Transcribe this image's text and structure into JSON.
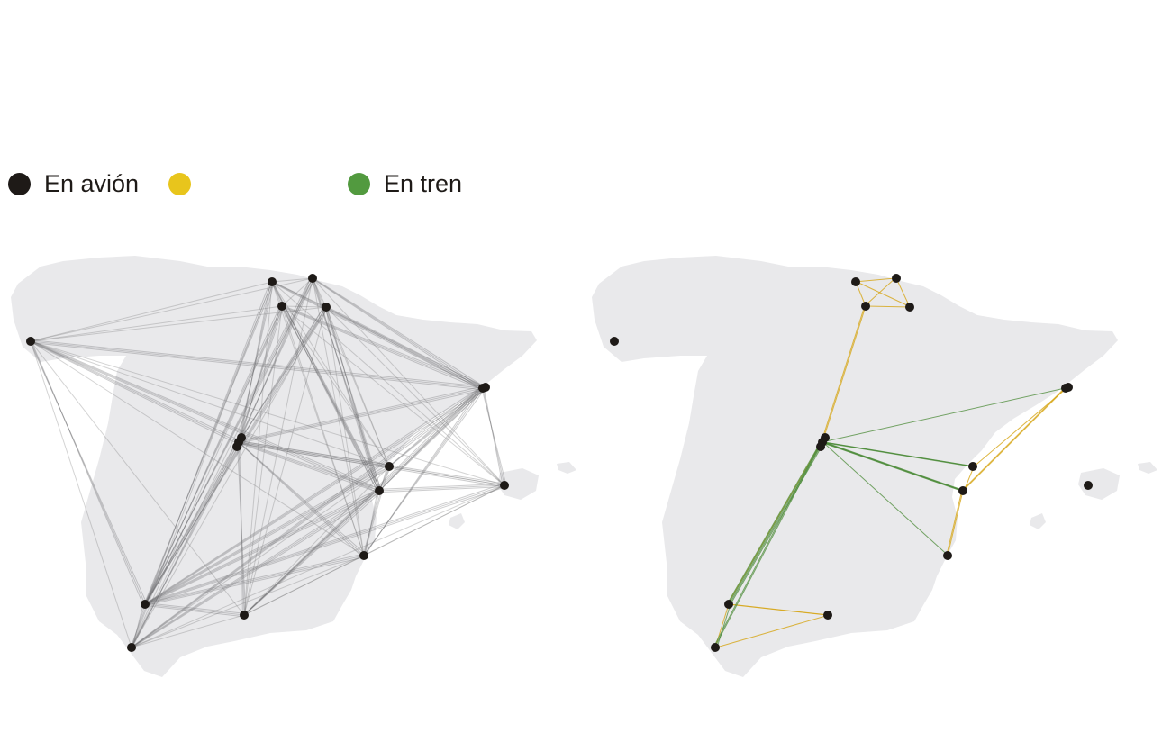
{
  "legend": {
    "plane": {
      "label": "En avión",
      "color": "#1e1a17"
    },
    "bus": {
      "label": "",
      "color": "#e8c51c"
    },
    "train": {
      "label": "En tren",
      "color": "#529a3f"
    }
  },
  "colors": {
    "land": "#e9e9eb",
    "node": "#1e1a17",
    "plane_route": "#6f6f72",
    "bus_route": "#d6a514",
    "train_route": "#4a8a36"
  }
}
